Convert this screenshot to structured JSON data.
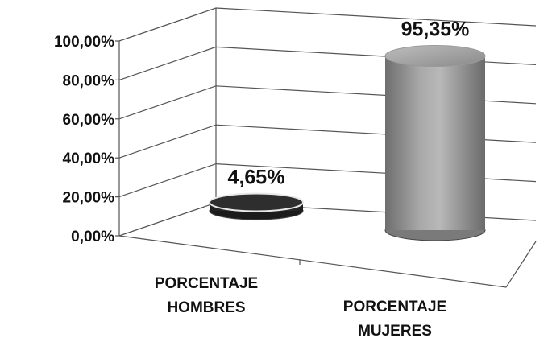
{
  "chart_data": {
    "type": "bar",
    "style": "3d-cylinder",
    "categories": [
      [
        "PORCENTAJE",
        "HOMBRES"
      ],
      [
        "PORCENTAJE",
        "MUJERES"
      ]
    ],
    "values": [
      4.65,
      95.35
    ],
    "data_labels": [
      "4,65%",
      "95,35%"
    ],
    "yticks": [
      {
        "value": 0,
        "label": "0,00%"
      },
      {
        "value": 20,
        "label": "20,00%"
      },
      {
        "value": 40,
        "label": "40,00%"
      },
      {
        "value": 60,
        "label": "60,00%"
      },
      {
        "value": 80,
        "label": "80,00%"
      },
      {
        "value": 100,
        "label": "100,00%"
      }
    ],
    "ylim": [
      0,
      100
    ],
    "grid": true,
    "legend": "none",
    "colors": {
      "bar_dark": "#2b2b2b",
      "bar_gray": "#8c8c8c",
      "grid": "#555555",
      "text": "#111111"
    }
  }
}
